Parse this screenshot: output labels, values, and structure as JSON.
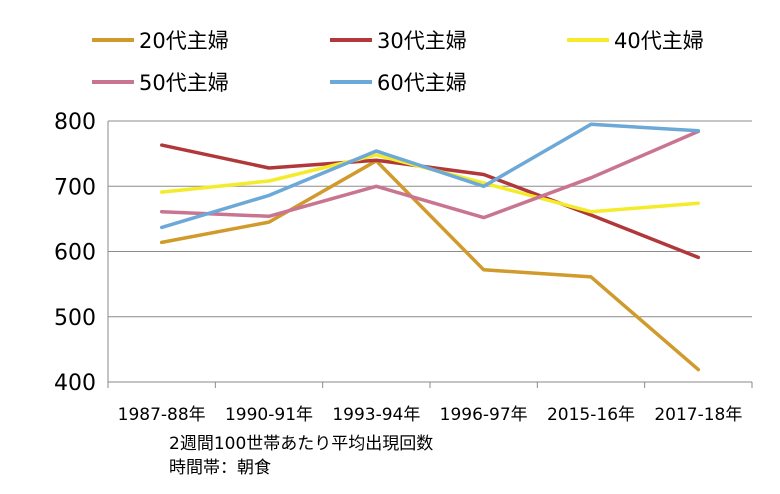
{
  "chart_data": {
    "type": "line",
    "title": "",
    "xlabel": "",
    "ylabel": "",
    "categories": [
      "1987-88年",
      "1990-91年",
      "1993-94年",
      "1996-97年",
      "2015-16年",
      "2017-18年"
    ],
    "ylim": [
      400,
      800
    ],
    "yticks": [
      "400",
      "500",
      "600",
      "700",
      "800"
    ],
    "grid": true,
    "legend_position": "top",
    "series": [
      {
        "name": "20代主婦",
        "color": "#D09A2C",
        "values": [
          614,
          645,
          739,
          572,
          561,
          419
        ]
      },
      {
        "name": "30代主婦",
        "color": "#B0383A",
        "values": [
          763,
          728,
          740,
          718,
          656,
          591
        ]
      },
      {
        "name": "40代主婦",
        "color": "#F4EB2A",
        "values": [
          691,
          708,
          748,
          705,
          661,
          674
        ]
      },
      {
        "name": "50代主婦",
        "color": "#C97591",
        "values": [
          661,
          654,
          700,
          652,
          713,
          784
        ]
      },
      {
        "name": "60代主婦",
        "color": "#6CA8D8",
        "values": [
          637,
          686,
          754,
          700,
          795,
          785
        ]
      }
    ],
    "notes": [
      "2週間100世帯あたり平均出現回数",
      "時間帯：朝食"
    ]
  }
}
